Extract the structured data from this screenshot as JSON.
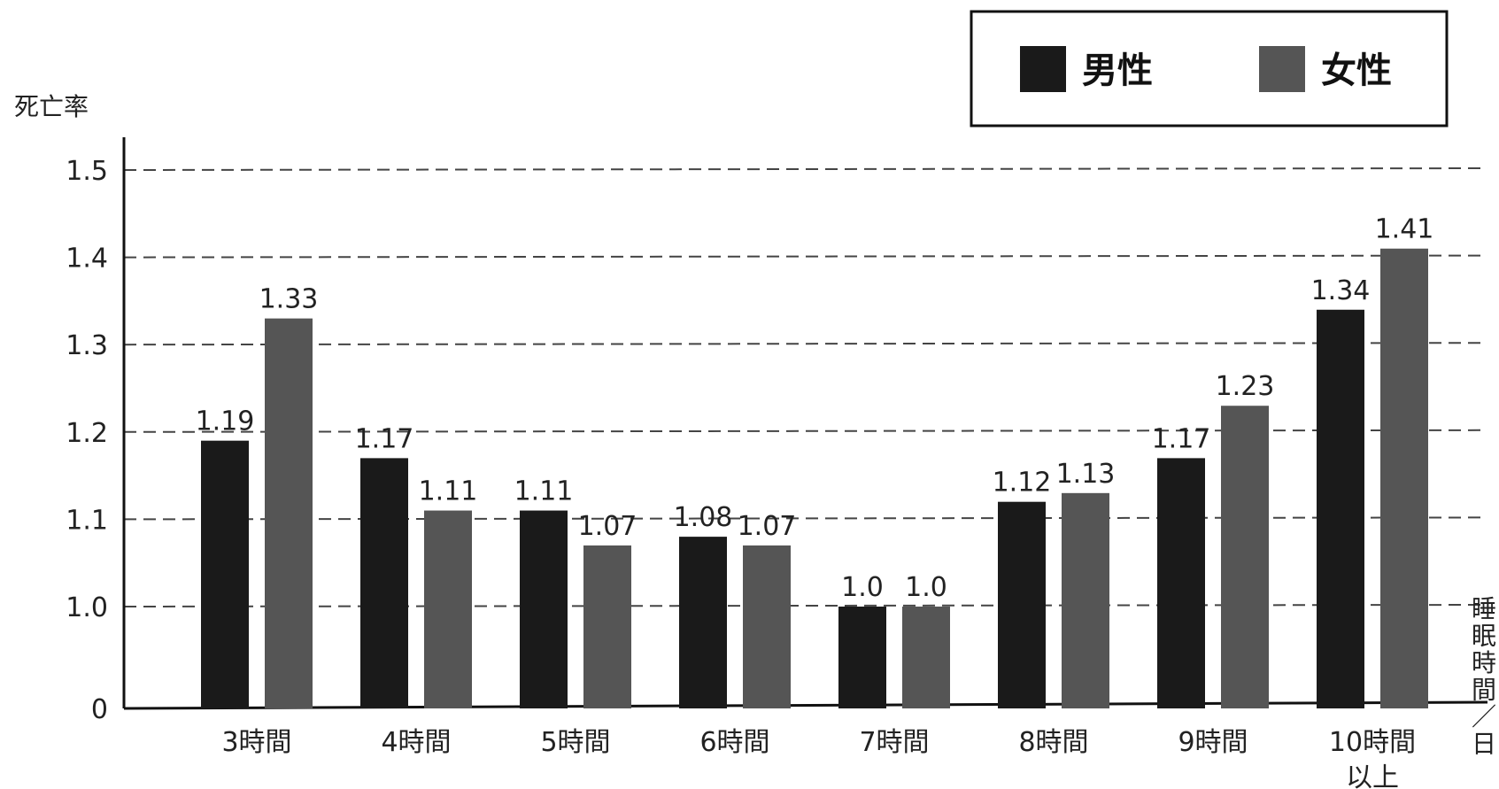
{
  "chart_data": {
    "type": "bar",
    "ylabel": "死亡率",
    "xlabel": "睡眠時間／日",
    "categories": [
      "3時間",
      "4時間",
      "5時間",
      "6時間",
      "7時間",
      "8時間",
      "9時間",
      "10時間以上"
    ],
    "category_lines": [
      [
        "3時間"
      ],
      [
        "4時間"
      ],
      [
        "5時間"
      ],
      [
        "6時間"
      ],
      [
        "7時間"
      ],
      [
        "8時間"
      ],
      [
        "9時間"
      ],
      [
        "10時間",
        "以上"
      ]
    ],
    "series": [
      {
        "name": "男性",
        "color": "#1a1a1a",
        "values": [
          1.19,
          1.17,
          1.11,
          1.08,
          1.0,
          1.12,
          1.17,
          1.34
        ]
      },
      {
        "name": "女性",
        "color": "#555555",
        "values": [
          1.33,
          1.11,
          1.07,
          1.07,
          1.0,
          1.13,
          1.23,
          1.41
        ]
      }
    ],
    "data_labels": [
      [
        "1.19",
        "1.17",
        "1.11",
        "1.08",
        "1.0",
        "1.12",
        "1.17",
        "1.34"
      ],
      [
        "1.33",
        "1.11",
        "1.07",
        "1.07",
        "1.0",
        "1.13",
        "1.23",
        "1.41"
      ]
    ],
    "y_ticks": [
      "0",
      "1.0",
      "1.1",
      "1.2",
      "1.3",
      "1.4",
      "1.5"
    ],
    "y_tick_values": [
      0.88,
      1.0,
      1.1,
      1.2,
      1.3,
      1.4,
      1.5
    ],
    "ylim": [
      0.88,
      1.5
    ],
    "axis_break": true,
    "grid": "dashed-horizontal",
    "legend_position": "top-right"
  }
}
